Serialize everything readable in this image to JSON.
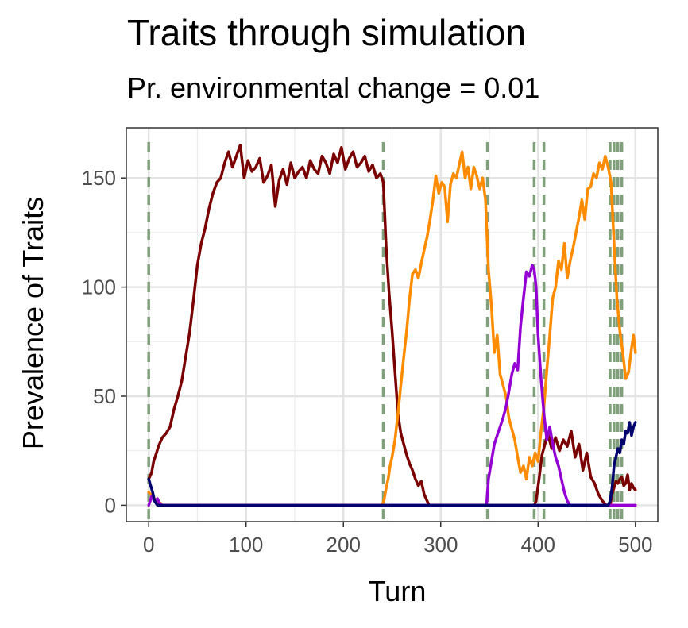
{
  "chart_data": {
    "type": "line",
    "title": "Traits through simulation",
    "subtitle": "Pr. environmental change = 0.01",
    "xlabel": "Turn",
    "ylabel": "Prevalence of Traits",
    "xlim": [
      -23,
      523
    ],
    "ylim": [
      -7.5,
      173
    ],
    "xticks": [
      0,
      100,
      200,
      300,
      400,
      500
    ],
    "yticks": [
      0,
      50,
      100,
      150
    ],
    "grid": true,
    "legend": "none",
    "environmental_changes": [
      0,
      241,
      348,
      396,
      406,
      474,
      478,
      482,
      486
    ],
    "series": [
      {
        "color": "#7a0000",
        "x": [
          0,
          3,
          5,
          8,
          10,
          14,
          18,
          22,
          26,
          30,
          34,
          38,
          42,
          46,
          50,
          54,
          58,
          62,
          66,
          70,
          74,
          78,
          82,
          86,
          90,
          94,
          98,
          102,
          106,
          110,
          114,
          118,
          122,
          126,
          130,
          134,
          138,
          142,
          146,
          150,
          154,
          158,
          162,
          166,
          170,
          174,
          178,
          182,
          186,
          190,
          194,
          198,
          202,
          206,
          210,
          214,
          218,
          222,
          226,
          230,
          234,
          238,
          241,
          244,
          247,
          250,
          253,
          256,
          259,
          262,
          265,
          268,
          271,
          274,
          277,
          280,
          283,
          286,
          288,
          290,
          350,
          372,
          396,
          398,
          401,
          404,
          407,
          410,
          414,
          418,
          422,
          426,
          430,
          434,
          438,
          442,
          446,
          450,
          454,
          458,
          462,
          466,
          470,
          472,
          474,
          476,
          478,
          480,
          482,
          484,
          486,
          488,
          490,
          492,
          494,
          496,
          498,
          500
        ],
        "y": [
          12,
          15,
          20,
          24,
          27,
          31,
          33,
          36,
          44,
          50,
          57,
          68,
          79,
          94,
          110,
          120,
          127,
          136,
          143,
          148,
          150,
          157,
          162,
          155,
          160,
          165,
          150,
          158,
          153,
          155,
          159,
          148,
          151,
          156,
          137,
          149,
          154,
          147,
          157,
          150,
          153,
          155,
          150,
          158,
          154,
          152,
          160,
          157,
          152,
          161,
          157,
          164,
          154,
          159,
          162,
          155,
          157,
          160,
          153,
          156,
          150,
          152,
          148,
          118,
          97,
          80,
          61,
          42,
          33,
          28,
          23,
          19,
          16,
          12,
          9,
          11,
          5,
          2,
          0,
          0,
          0,
          0,
          0,
          2,
          12,
          23,
          28,
          33,
          26,
          31,
          25,
          30,
          27,
          34,
          22,
          28,
          16,
          24,
          13,
          10,
          5,
          2,
          0,
          0,
          0,
          5,
          8,
          11,
          10,
          12,
          13,
          9,
          10,
          14,
          7,
          10,
          8,
          7
        ]
      },
      {
        "color": "#ff8c00",
        "x": [
          0,
          2,
          4,
          6,
          8,
          10,
          12,
          14,
          20,
          60,
          100,
          150,
          200,
          240,
          242,
          244,
          246,
          248,
          250,
          253,
          256,
          259,
          262,
          265,
          268,
          271,
          274,
          277,
          280,
          283,
          286,
          289,
          292,
          295,
          298,
          301,
          304,
          307,
          310,
          313,
          316,
          319,
          322,
          325,
          328,
          331,
          334,
          337,
          340,
          343,
          346,
          349,
          352,
          355,
          358,
          361,
          364,
          367,
          370,
          373,
          376,
          379,
          382,
          385,
          388,
          391,
          394,
          397,
          400,
          403,
          406,
          409,
          412,
          415,
          418,
          421,
          424,
          427,
          430,
          433,
          436,
          439,
          442,
          445,
          448,
          451,
          454,
          457,
          460,
          463,
          466,
          469,
          472,
          475,
          478,
          481,
          484,
          487,
          490,
          493,
          496,
          498,
          500
        ],
        "y": [
          6,
          5,
          4,
          3,
          2,
          1,
          1,
          0,
          0,
          0,
          0,
          0,
          0,
          0,
          3,
          8,
          12,
          18,
          22,
          30,
          42,
          55,
          68,
          80,
          95,
          106,
          108,
          104,
          111,
          117,
          123,
          131,
          140,
          151,
          143,
          148,
          146,
          130,
          147,
          152,
          150,
          156,
          162,
          150,
          155,
          145,
          155,
          151,
          145,
          150,
          140,
          108,
          92,
          70,
          78,
          60,
          55,
          50,
          40,
          35,
          30,
          22,
          15,
          18,
          12,
          22,
          18,
          24,
          20,
          34,
          45,
          62,
          78,
          95,
          100,
          112,
          108,
          120,
          104,
          112,
          118,
          125,
          132,
          140,
          131,
          145,
          146,
          152,
          150,
          157,
          154,
          160,
          155,
          148,
          120,
          95,
          80,
          70,
          58,
          61,
          72,
          78,
          70
        ]
      },
      {
        "color": "#9400d3",
        "x": [
          0,
          3,
          6,
          9,
          11,
          14,
          60,
          150,
          240,
          300,
          347,
          349,
          352,
          355,
          358,
          361,
          364,
          367,
          370,
          373,
          376,
          379,
          382,
          385,
          388,
          391,
          394,
          396,
          398,
          400,
          403,
          406,
          409,
          412,
          415,
          418,
          421,
          424,
          427,
          430,
          433,
          500
        ],
        "y": [
          0,
          4,
          2,
          3,
          1,
          0,
          0,
          0,
          0,
          0,
          0,
          12,
          20,
          28,
          32,
          36,
          40,
          45,
          52,
          60,
          65,
          62,
          82,
          95,
          107,
          105,
          110,
          108,
          100,
          78,
          58,
          42,
          30,
          36,
          28,
          22,
          18,
          12,
          6,
          2,
          0,
          0
        ]
      },
      {
        "color": "#00006e",
        "x": [
          0,
          2,
          4,
          6,
          9,
          100,
          200,
          300,
          400,
          472,
          474,
          476,
          478,
          480,
          482,
          484,
          486,
          488,
          490,
          492,
          494,
          496,
          498,
          500
        ],
        "y": [
          12,
          9,
          6,
          2,
          0,
          0,
          0,
          0,
          0,
          0,
          2,
          8,
          18,
          22,
          26,
          24,
          30,
          28,
          34,
          33,
          38,
          32,
          36,
          38
        ]
      }
    ]
  }
}
